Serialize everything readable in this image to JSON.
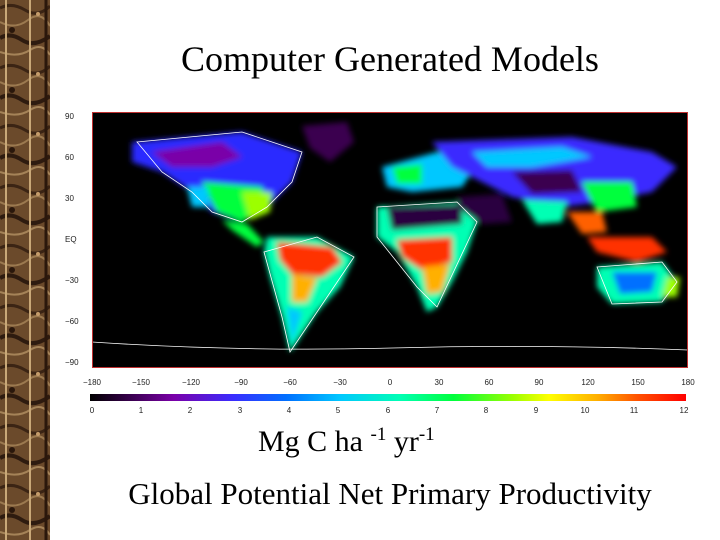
{
  "title": "Computer Generated Models",
  "map": {
    "y_ticks": [
      "90",
      "60",
      "30",
      "EQ",
      "−30",
      "−60",
      "−90"
    ],
    "x_ticks": [
      "−180",
      "−150",
      "−120",
      "−90",
      "−60",
      "−30",
      "0",
      "30",
      "60",
      "90",
      "120",
      "150",
      "180"
    ]
  },
  "colorbar": {
    "ticks": [
      "0",
      "1",
      "2",
      "3",
      "4",
      "5",
      "6",
      "7",
      "8",
      "9",
      "10",
      "11",
      "12"
    ],
    "colors": [
      "#000000",
      "#7a00a8",
      "#0070ff",
      "#00ffb4",
      "#00ff3c",
      "#ffff00",
      "#ff0000"
    ]
  },
  "units": {
    "base": "Mg C ha ",
    "exp1": "-1",
    "mid": " yr",
    "exp2": "-1"
  },
  "caption": "Global Potential Net Primary Productivity",
  "colors": {
    "border_dark": "#3b2414",
    "border_light": "#8a6a45",
    "map_background": "#000000",
    "map_frame": "#c03030"
  }
}
